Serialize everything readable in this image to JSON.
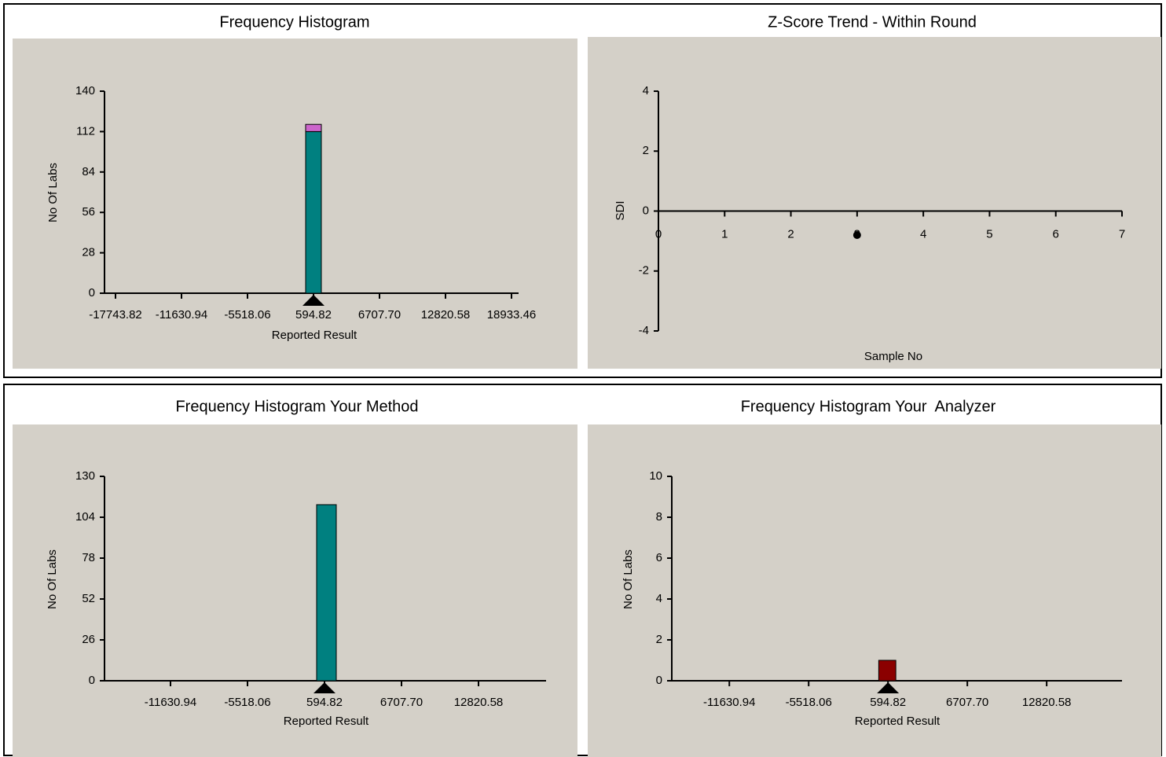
{
  "chart_data": [
    {
      "type": "histogram",
      "title": "Frequency Histogram",
      "xlabel": "Reported Result",
      "ylabel": "No Of Labs",
      "bins": [
        -133,
        1322
      ],
      "series": [
        {
          "color": "#008080",
          "values": [
            112
          ]
        },
        {
          "color": "#cc66cc",
          "values": [
            5
          ]
        }
      ],
      "marker": 594.82,
      "xlim": [
        -18762,
        19589
      ],
      "ylim": [
        0,
        140
      ],
      "xticks": [
        -17743.82,
        -11630.94,
        -5518.06,
        594.82,
        {
          "value": 6707.7,
          "label": "6707.70"
        },
        12820.58,
        18933.46
      ],
      "yticks": [
        0,
        28,
        56,
        84,
        112,
        140
      ]
    },
    {
      "type": "scatter",
      "title": "Z-Score Trend - Within Round",
      "xlabel": "Sample No",
      "ylabel": "SDI",
      "x": [
        3
      ],
      "y": [
        -0.8
      ],
      "color": "#000000",
      "xlim": [
        0,
        7
      ],
      "ylim": [
        -4,
        4
      ],
      "xticks": [
        0,
        1,
        2,
        3,
        4,
        5,
        6,
        7
      ],
      "yticks": [
        -4,
        -2,
        0,
        2,
        4
      ]
    },
    {
      "type": "histogram",
      "title": "Frequency Histogram Your Method",
      "xlabel": "Reported Result",
      "ylabel": "No Of Labs",
      "bins": [
        -30,
        1530
      ],
      "series": [
        {
          "color": "#008080",
          "values": [
            112
          ]
        }
      ],
      "marker": 594.82,
      "xlim": [
        -16870,
        18185
      ],
      "ylim": [
        0,
        130
      ],
      "xticks": [
        -11630.94,
        -5518.06,
        594.82,
        {
          "value": 6707.7,
          "label": "6707.70"
        },
        12820.58
      ],
      "yticks": [
        0,
        26,
        52,
        78,
        104,
        130
      ]
    },
    {
      "type": "histogram",
      "title": "Frequency Histogram Your  Analyzer",
      "xlabel": "Reported Result",
      "ylabel": "No Of Labs",
      "bins": [
        -120,
        1198
      ],
      "series": [
        {
          "color": "#8b0000",
          "values": [
            1
          ]
        }
      ],
      "marker": 594.82,
      "xlim": [
        -16065,
        18625
      ],
      "ylim": [
        0,
        10
      ],
      "xticks": [
        -11630.94,
        -5518.06,
        594.82,
        {
          "value": 6707.7,
          "label": "6707.70"
        },
        12820.58
      ],
      "yticks": [
        0,
        2,
        4,
        6,
        8,
        10
      ]
    }
  ]
}
